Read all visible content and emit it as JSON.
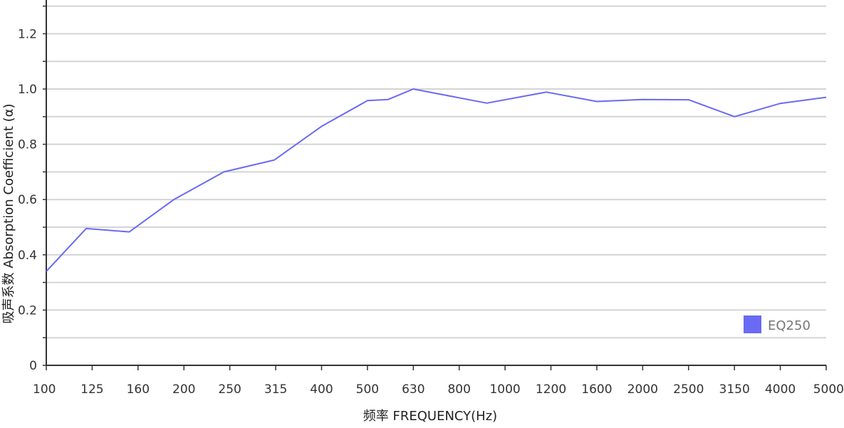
{
  "chart_data": {
    "type": "line",
    "title": "",
    "xlabel": "频率 FREQUENCY(Hz)",
    "ylabel": "吸声系数 Absorption Coefficient (α)",
    "categories": [
      "100",
      "125",
      "160",
      "200",
      "250",
      "315",
      "400",
      "500",
      "630",
      "800",
      "1000",
      "1200",
      "1600",
      "2000",
      "2500",
      "3150",
      "4000",
      "5000"
    ],
    "y_tick_labels": [
      "0",
      "0.2",
      "0.4",
      "0.6",
      "0.8",
      "1.0",
      "1.2"
    ],
    "ylim": [
      0,
      1.3
    ],
    "grid": true,
    "legend_position": "bottom-right",
    "series": [
      {
        "name": "EQ250",
        "color": "#6a6af4",
        "points": [
          {
            "x": 0,
            "y": 0.34
          },
          {
            "x": 0.87,
            "y": 0.495
          },
          {
            "x": 1.81,
            "y": 0.483
          },
          {
            "x": 2.78,
            "y": 0.6
          },
          {
            "x": 3.87,
            "y": 0.7
          },
          {
            "x": 4.97,
            "y": 0.743
          },
          {
            "x": 6.0,
            "y": 0.865
          },
          {
            "x": 7.0,
            "y": 0.958
          },
          {
            "x": 7.45,
            "y": 0.962
          },
          {
            "x": 8.0,
            "y": 1.0
          },
          {
            "x": 9.6,
            "y": 0.949
          },
          {
            "x": 10.9,
            "y": 0.989
          },
          {
            "x": 12.0,
            "y": 0.955
          },
          {
            "x": 13.0,
            "y": 0.962
          },
          {
            "x": 14.0,
            "y": 0.961
          },
          {
            "x": 15.0,
            "y": 0.9
          },
          {
            "x": 16.0,
            "y": 0.948
          },
          {
            "x": 17.0,
            "y": 0.97
          }
        ]
      }
    ]
  }
}
